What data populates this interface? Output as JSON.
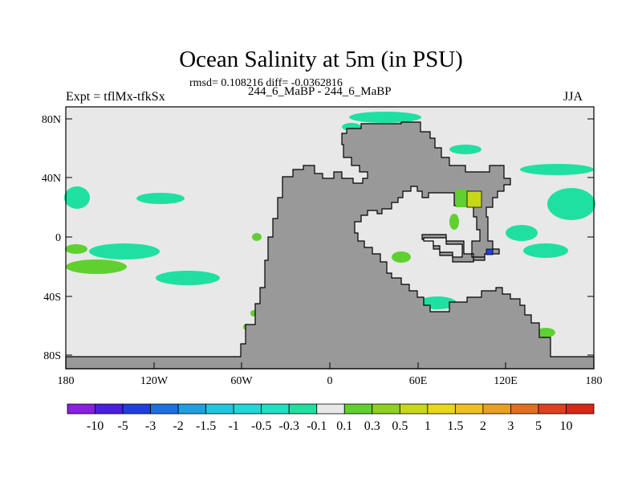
{
  "title": "Ocean Salinity at 5m (in PSU)",
  "stats": "rmsd= 0.108216 diff= -0.0362816",
  "subtitle": "244_6_MaBP - 244_6_MaBP",
  "experiment": "Expt = tflMx-tfkSx",
  "season": "JJA",
  "y_ticks": [
    "80N",
    "40N",
    "0",
    "40S",
    "80S"
  ],
  "x_ticks": [
    "180",
    "120W",
    "60W",
    "0",
    "60E",
    "120E",
    "180"
  ],
  "colorbar": {
    "labels": [
      "-10",
      "-5",
      "-3",
      "-2",
      "-1.5",
      "-1",
      "-0.5",
      "-0.3",
      "-0.1",
      "0.1",
      "0.3",
      "0.5",
      "1",
      "1.5",
      "2",
      "3",
      "5",
      "10"
    ],
    "colors": [
      "#8a1fe0",
      "#4a1fe0",
      "#1f3fe0",
      "#1f6fe0",
      "#1f9fe0",
      "#1fc8e0",
      "#1fd8d8",
      "#1fe0c0",
      "#1fe0a0",
      "#e8e8e8",
      "#60d030",
      "#90d020",
      "#c8d818",
      "#e8d818",
      "#f0c020",
      "#e8a020",
      "#e07020",
      "#e04020",
      "#d82818"
    ]
  },
  "colors": {
    "land": "#999999",
    "ocean_neutral": "#e8e8e8",
    "fresher": "#1fe0a0",
    "saltier": "#60d030",
    "strong_fresh": "#1f3fe0",
    "strong_salt": "#c8d818"
  }
}
